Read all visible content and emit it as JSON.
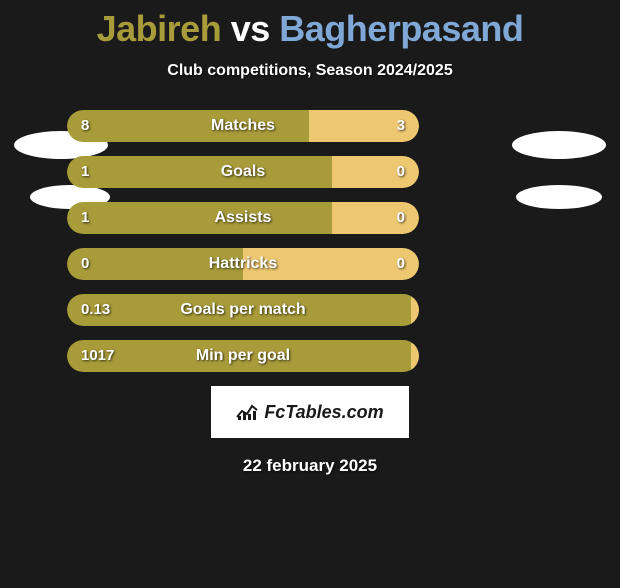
{
  "title": {
    "player1": "Jabireh",
    "vs": "vs",
    "player2": "Bagherpasand",
    "color1": "#a89b3a",
    "color2": "#7fa8d6"
  },
  "subtitle": "Club competitions, Season 2024/2025",
  "colors": {
    "left_bar": "#a89b3a",
    "right_bar": "#eec871",
    "background": "#1a1a1a",
    "text": "#ffffff"
  },
  "bar_container_width": 352,
  "stats": [
    {
      "label": "Matches",
      "left_val": "8",
      "right_val": "3",
      "left_width": 242,
      "right_width": 110,
      "show_right_val": true
    },
    {
      "label": "Goals",
      "left_val": "1",
      "right_val": "0",
      "left_width": 265,
      "right_width": 87,
      "show_right_val": true
    },
    {
      "label": "Assists",
      "left_val": "1",
      "right_val": "0",
      "left_width": 265,
      "right_width": 87,
      "show_right_val": true
    },
    {
      "label": "Hattricks",
      "left_val": "0",
      "right_val": "0",
      "left_width": 176,
      "right_width": 176,
      "show_right_val": true
    },
    {
      "label": "Goals per match",
      "left_val": "0.13",
      "right_val": "",
      "left_width": 344,
      "right_width": 8,
      "show_right_val": false
    },
    {
      "label": "Min per goal",
      "left_val": "1017",
      "right_val": "",
      "left_width": 344,
      "right_width": 8,
      "show_right_val": false
    }
  ],
  "logo_text": "FcTables.com",
  "date": "22 february 2025"
}
